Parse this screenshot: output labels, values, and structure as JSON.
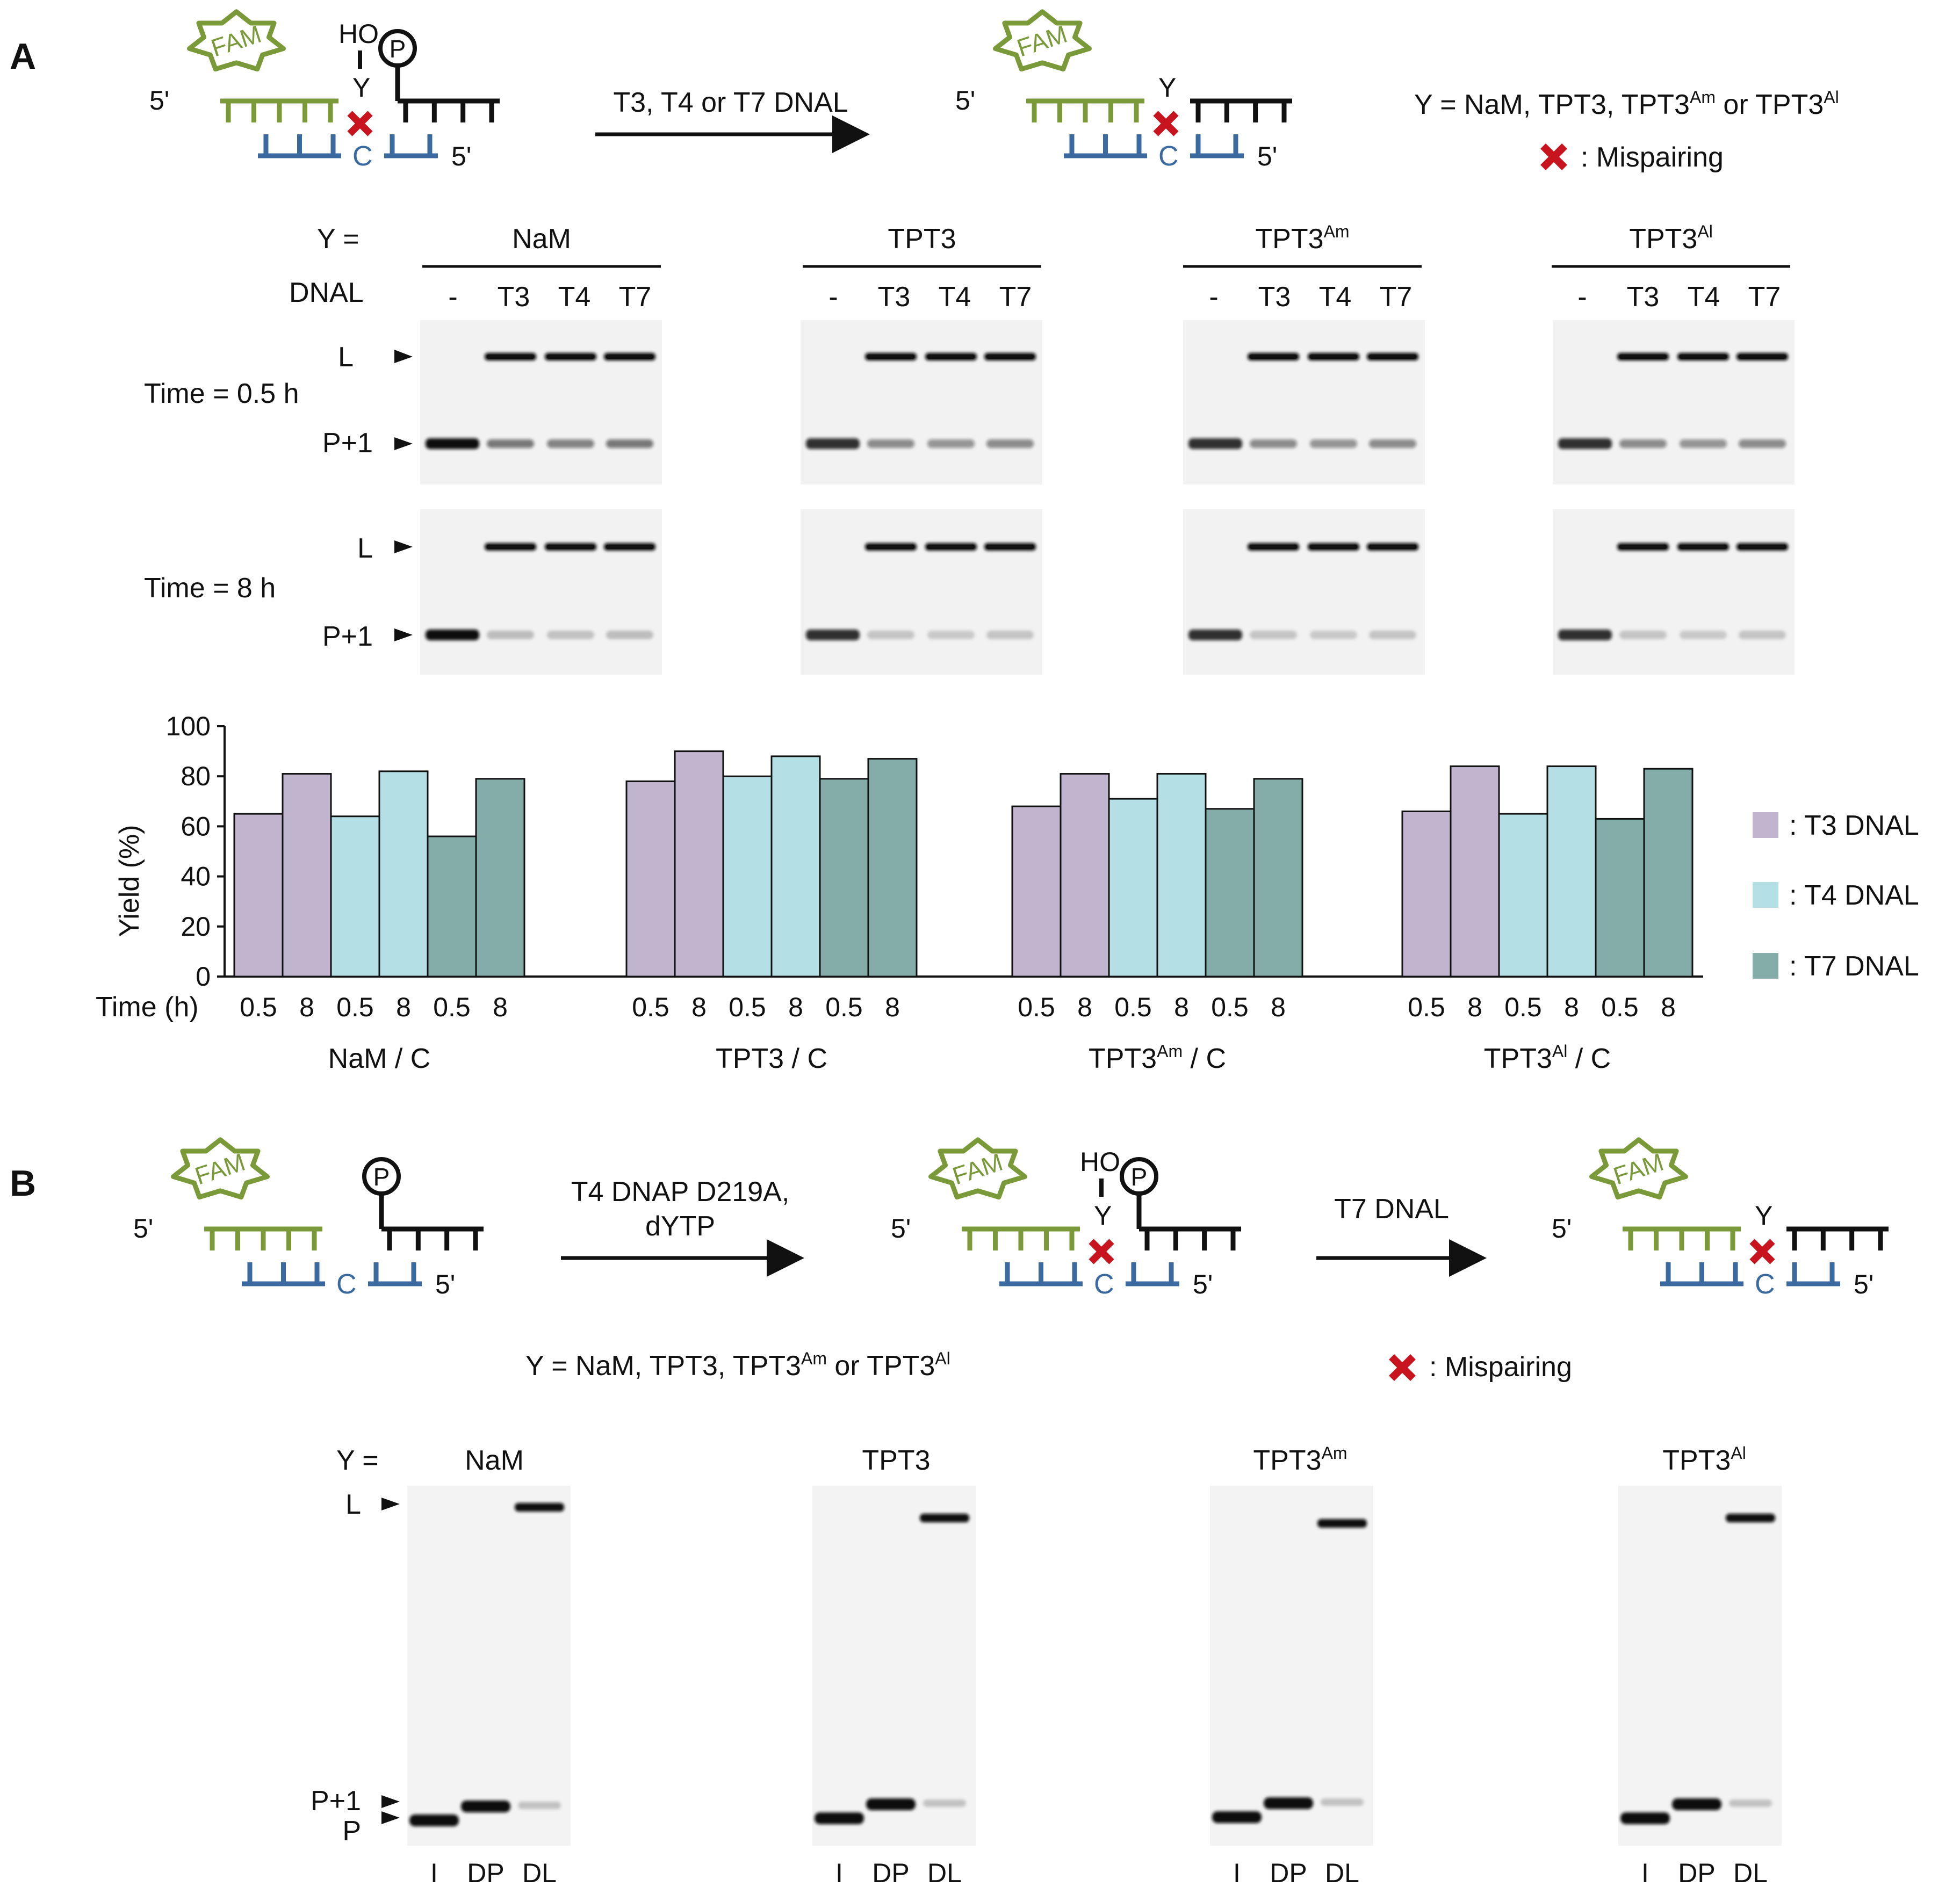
{
  "panel_a": {
    "letter": "A",
    "scheme": {
      "fam": "FAM",
      "five_prime": "5'",
      "ho": "HO",
      "y": "Y",
      "c": "C",
      "p": "P",
      "arrow_label": "T3, T4 or T7 DNAL",
      "y_def_prefix": "Y = NaM, TPT3, TPT3",
      "y_def_sup1": "Am",
      "y_def_mid": " or TPT3",
      "y_def_sup2": "Al",
      "mispair_label": ":  Mispairing"
    },
    "gel_header": {
      "y_label": "Y =",
      "dnal_label": "DNAL",
      "groups": [
        {
          "base": "NaM",
          "sup": ""
        },
        {
          "base": "TPT3",
          "sup": ""
        },
        {
          "base": "TPT3",
          "sup": "Am"
        },
        {
          "base": "TPT3",
          "sup": "Al"
        }
      ],
      "lanes": [
        "-",
        "T3",
        "T4",
        "T7"
      ]
    },
    "gel_rows": [
      {
        "time_label": "Time = 0.5 h",
        "band_l": "L",
        "band_p": "P+1"
      },
      {
        "time_label": "Time = 8 h",
        "band_l": "L",
        "band_p": "P+1"
      }
    ],
    "chart_data": {
      "type": "bar",
      "ylabel": "Yield (%)",
      "ylim": [
        0,
        100
      ],
      "yticks": [
        0,
        20,
        40,
        60,
        80,
        100
      ],
      "time_axis_label": "Time (h)",
      "x_tick_labels": [
        "0.5",
        "8",
        "0.5",
        "8",
        "0.5",
        "8"
      ],
      "groups": [
        {
          "label": "NaM / C",
          "base": "NaM",
          "sup": "",
          "suffix": " / C",
          "values": [
            65,
            81,
            64,
            82,
            56,
            79
          ]
        },
        {
          "label": "TPT3 / C",
          "base": "TPT3",
          "sup": "",
          "suffix": " / C",
          "values": [
            78,
            90,
            80,
            88,
            79,
            87
          ]
        },
        {
          "label": "TPT3Am / C",
          "base": "TPT3",
          "sup": "Am",
          "suffix": " / C",
          "values": [
            68,
            81,
            71,
            81,
            67,
            79
          ]
        },
        {
          "label": "TPT3Al / C",
          "base": "TPT3",
          "sup": "Al",
          "suffix": " / C",
          "values": [
            66,
            84,
            65,
            84,
            63,
            83
          ]
        }
      ],
      "series_order": [
        "T3",
        "T3",
        "T4",
        "T4",
        "T7",
        "T7"
      ],
      "legend": [
        {
          "name": ":  T3 DNAL",
          "color": "#c0b4cf"
        },
        {
          "name": ":  T4 DNAL",
          "color": "#b4e0e5"
        },
        {
          "name": ":  T7 DNAL",
          "color": "#84ada9"
        }
      ],
      "legend_position": "right",
      "grid": false
    }
  },
  "panel_b": {
    "letter": "B",
    "scheme": {
      "fam": "FAM",
      "five_prime": "5'",
      "ho": "HO",
      "y": "Y",
      "c": "C",
      "p": "P",
      "arrow1_line1": "T4 DNAP D219A,",
      "arrow1_line2": "dYTP",
      "arrow2_label": "T7 DNAL",
      "y_def_prefix": "Y = NaM, TPT3, TPT3",
      "y_def_sup1": "Am",
      "y_def_mid": " or TPT3",
      "y_def_sup2": "Al",
      "mispair_label": ":  Mispairing"
    },
    "gels": {
      "y_label": "Y  =",
      "groups": [
        {
          "base": "NaM",
          "sup": ""
        },
        {
          "base": "TPT3",
          "sup": ""
        },
        {
          "base": "TPT3",
          "sup": "Am"
        },
        {
          "base": "TPT3",
          "sup": "Al"
        }
      ],
      "band_l": "L",
      "band_p1": "P+1",
      "band_p": "P",
      "lanes": [
        "I",
        "DP",
        "DL"
      ]
    }
  },
  "colors": {
    "fam_green": "#7a9a3a",
    "template_blue": "#3a6aa0",
    "mispair_red": "#c8141e",
    "t3": "#c0b4cf",
    "t4": "#b4e0e5",
    "t7": "#84ada9"
  }
}
